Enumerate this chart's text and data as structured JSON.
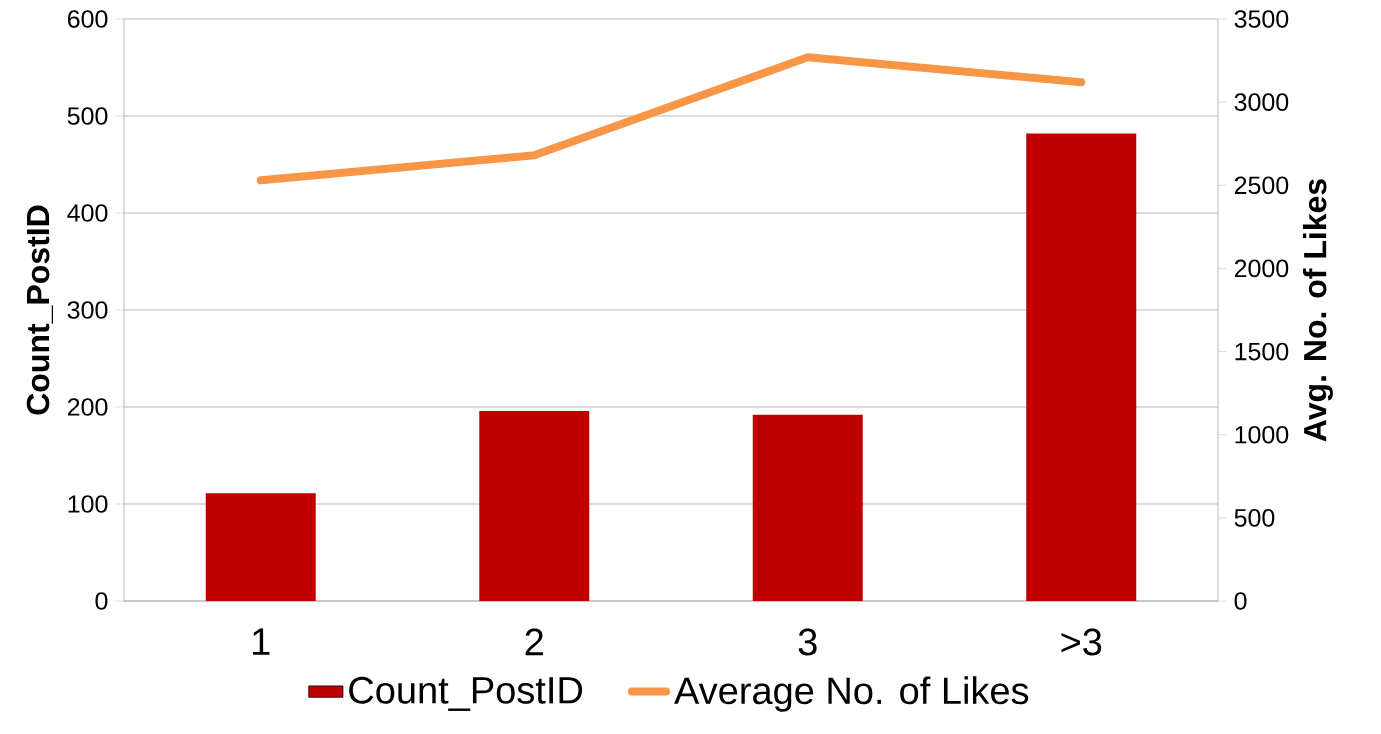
{
  "chart_data": {
    "type": "bar",
    "categories": [
      "1",
      "2",
      "3",
      ">3"
    ],
    "ylabel": "Count_PostID",
    "y2label": "Avg. No. of Likes",
    "ylim": [
      0,
      600
    ],
    "yticks": [
      0,
      100,
      200,
      300,
      400,
      500,
      600
    ],
    "y2lim": [
      0,
      3500
    ],
    "y2ticks": [
      0,
      500,
      1000,
      1500,
      2000,
      2500,
      3000,
      3500
    ],
    "grid": "y",
    "legend": "bottom",
    "series": [
      {
        "name": "Count_PostID",
        "color": "#c00000",
        "values": [
          111,
          196,
          192,
          482
        ]
      },
      {
        "name": "Average No. of Likes",
        "type": "line",
        "axis": "y2",
        "color": "#f79646",
        "values": [
          2530,
          2680,
          3270,
          3120
        ]
      }
    ]
  }
}
